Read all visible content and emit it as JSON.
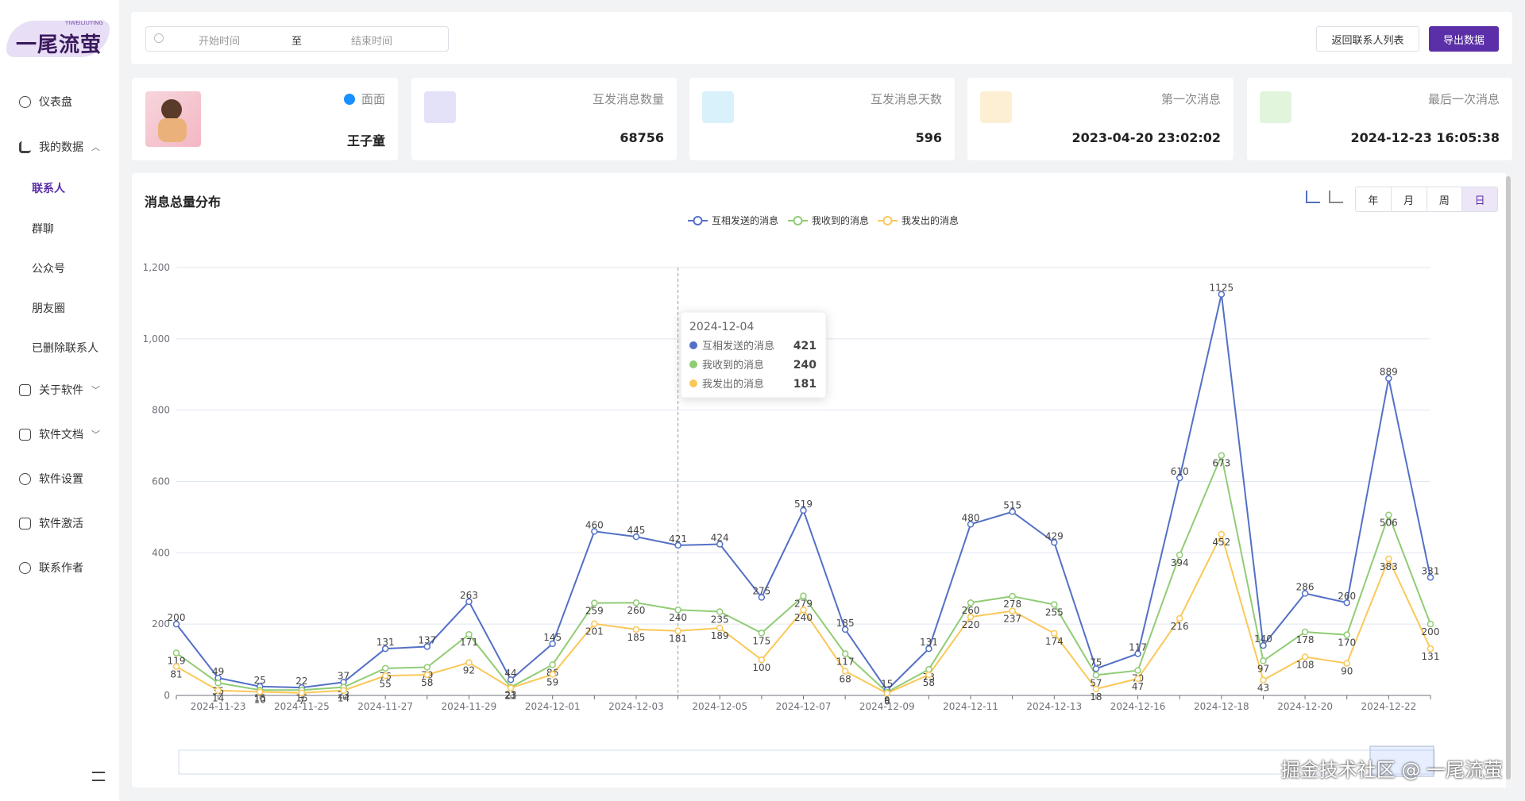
{
  "sidebar": {
    "logo": "一尾流萤",
    "logo_sub": "YIWEILIUYING",
    "menu": [
      "仪表盘",
      "我的数据",
      "联系人",
      "群聊",
      "公众号",
      "朋友圈",
      "已删除联系人",
      "关于软件",
      "软件文档",
      "软件设置",
      "软件激活",
      "联系作者"
    ]
  },
  "toolbar": {
    "start": "开始时间",
    "sep": "至",
    "end": "结束时间",
    "back": "返回联系人列表",
    "export": "导出数据"
  },
  "profile": {
    "remark": "面面",
    "name": "王子童"
  },
  "cards": [
    {
      "label": "互发消息数量",
      "value": "68756"
    },
    {
      "label": "互发消息天数",
      "value": "596"
    },
    {
      "label": "第一次消息",
      "value": "2023-04-20 23:02:02"
    },
    {
      "label": "最后一次消息",
      "value": "2024-12-23 16:05:38"
    }
  ],
  "chart_panel": {
    "title": "消息总量分布",
    "periods": [
      "年",
      "月",
      "周",
      "日"
    ]
  },
  "chart_data": {
    "type": "line",
    "categories": [
      null,
      "2024-11-23",
      null,
      "2024-11-25",
      null,
      "2024-11-27",
      null,
      "2024-11-29",
      null,
      "2024-12-01",
      null,
      "2024-12-03",
      null,
      "2024-12-05",
      null,
      "2024-12-07",
      null,
      "2024-12-09",
      null,
      "2024-12-11",
      null,
      "2024-12-13",
      null,
      "2024-12-16",
      null,
      "2024-12-18",
      null,
      "2024-12-20",
      null,
      "2024-12-22",
      null
    ],
    "series": [
      {
        "name": "互相发送的消息",
        "color": "#5470c6",
        "values": [
          200,
          49,
          25,
          22,
          37,
          131,
          137,
          263,
          44,
          145,
          460,
          445,
          421,
          424,
          275,
          519,
          185,
          15,
          131,
          480,
          515,
          429,
          75,
          117,
          610,
          1125,
          140,
          286,
          260,
          889,
          331
        ]
      },
      {
        "name": "我收到的消息",
        "color": "#91cc75",
        "values": [
          119,
          35,
          15,
          15,
          23,
          76,
          79,
          171,
          23,
          86,
          259,
          260,
          240,
          235,
          175,
          279,
          117,
          9,
          73,
          260,
          278,
          255,
          57,
          70,
          394,
          673,
          97,
          178,
          170,
          506,
          200
        ]
      },
      {
        "name": "我发出的消息",
        "color": "#fac858",
        "values": [
          81,
          14,
          10,
          7,
          14,
          55,
          58,
          92,
          21,
          59,
          201,
          185,
          181,
          189,
          100,
          240,
          68,
          6,
          58,
          220,
          237,
          174,
          18,
          47,
          216,
          452,
          43,
          108,
          90,
          383,
          131
        ]
      }
    ],
    "ylim": [
      0,
      1200
    ],
    "yticks": [
      0,
      200,
      400,
      600,
      800,
      {
        "value": 1000,
        "label": "1,000"
      },
      {
        "value": 1200,
        "label": "1,200"
      }
    ],
    "grid": true,
    "tooltip": {
      "date": "2024-12-04"
    }
  },
  "watermark": "掘金技术社区 @ 一尾流萤"
}
